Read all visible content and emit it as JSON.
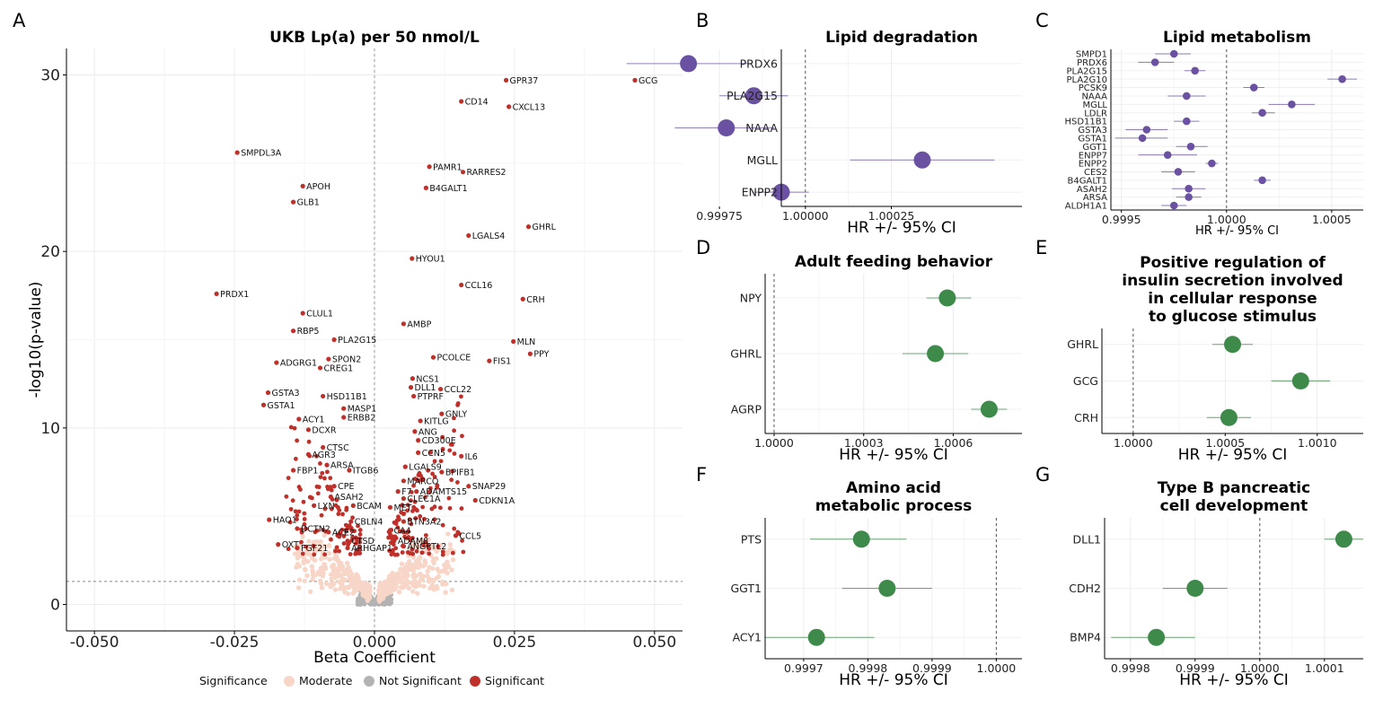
{
  "colors": {
    "significant": "#c0302a",
    "moderate": "#f7d6c8",
    "not_significant": "#b3b3b3",
    "purple": "#6b51a2",
    "green": "#3e8a4a",
    "grid": "#ececec"
  },
  "chart_data": [
    {
      "id": "A",
      "panel_letter": "A",
      "type": "scatter",
      "title": "UKB Lp(a) per 50 nmol/L",
      "xlabel": "Beta Coefficient",
      "ylabel": "-log10(p-value)",
      "xlim": [
        -0.055,
        0.055
      ],
      "ylim": [
        -1.5,
        31.5
      ],
      "x_ticks": [
        -0.05,
        -0.025,
        0,
        0.025,
        0.05
      ],
      "x_tick_labels": [
        "-0.050",
        "-0.025",
        "0.000",
        "0.025",
        "0.050"
      ],
      "y_ticks": [
        0,
        10,
        20,
        30
      ],
      "y_tick_labels": [
        "0",
        "10",
        "20",
        "30"
      ],
      "threshold_y": 1.3,
      "legend": {
        "title": "Significance",
        "entries": [
          {
            "label": "Moderate",
            "key": "moderate"
          },
          {
            "label": "Not Significant",
            "key": "not_significant"
          },
          {
            "label": "Significant",
            "key": "significant"
          }
        ],
        "position": "bottom"
      },
      "labeled_points": [
        {
          "label": "GCG",
          "x": 0.0465,
          "y": 29.7
        },
        {
          "label": "GPR37",
          "x": 0.0235,
          "y": 29.7
        },
        {
          "label": "CD14",
          "x": 0.0155,
          "y": 28.5
        },
        {
          "label": "CXCL13",
          "x": 0.024,
          "y": 28.2
        },
        {
          "label": "SMPDL3A",
          "x": -0.0245,
          "y": 25.6
        },
        {
          "label": "PAMR1",
          "x": 0.0098,
          "y": 24.8
        },
        {
          "label": "RARRES2",
          "x": 0.0158,
          "y": 24.5
        },
        {
          "label": "APOH",
          "x": -0.0128,
          "y": 23.7
        },
        {
          "label": "B4GALT1",
          "x": 0.0092,
          "y": 23.6
        },
        {
          "label": "GLB1",
          "x": -0.0145,
          "y": 22.8
        },
        {
          "label": "GHRL",
          "x": 0.0275,
          "y": 21.4
        },
        {
          "label": "LGALS4",
          "x": 0.0168,
          "y": 20.9
        },
        {
          "label": "HYOU1",
          "x": 0.0067,
          "y": 19.6
        },
        {
          "label": "CCL16",
          "x": 0.0155,
          "y": 18.1
        },
        {
          "label": "PRDX1",
          "x": -0.0282,
          "y": 17.6
        },
        {
          "label": "CRH",
          "x": 0.0265,
          "y": 17.3
        },
        {
          "label": "CLUL1",
          "x": -0.0128,
          "y": 16.5
        },
        {
          "label": "AMBP",
          "x": 0.0052,
          "y": 15.9
        },
        {
          "label": "RBP5",
          "x": -0.0145,
          "y": 15.5
        },
        {
          "label": "PLA2G15",
          "x": -0.0072,
          "y": 15.0
        },
        {
          "label": "MLN",
          "x": 0.0248,
          "y": 14.9
        },
        {
          "label": "PPY",
          "x": 0.0278,
          "y": 14.2
        },
        {
          "label": "PCOLCE",
          "x": 0.0105,
          "y": 14.0
        },
        {
          "label": "SPON2",
          "x": -0.0082,
          "y": 13.9
        },
        {
          "label": "FIS1",
          "x": 0.0205,
          "y": 13.8
        },
        {
          "label": "ADGRG1",
          "x": -0.0175,
          "y": 13.7
        },
        {
          "label": "CREG1",
          "x": -0.0097,
          "y": 13.4
        },
        {
          "label": "NCS1",
          "x": 0.0068,
          "y": 12.8
        },
        {
          "label": "DLL1",
          "x": 0.0065,
          "y": 12.3
        },
        {
          "label": "CCL22",
          "x": 0.0118,
          "y": 12.2
        },
        {
          "label": "GSTA3",
          "x": -0.019,
          "y": 12.0
        },
        {
          "label": "PTPRF",
          "x": 0.007,
          "y": 11.8
        },
        {
          "label": "HSD11B1",
          "x": -0.0092,
          "y": 11.8
        },
        {
          "label": "GSTA1",
          "x": -0.0198,
          "y": 11.3
        },
        {
          "label": "MASP1",
          "x": -0.0055,
          "y": 11.1
        },
        {
          "label": "GNLY",
          "x": 0.012,
          "y": 10.8
        },
        {
          "label": "ERBB2",
          "x": -0.0055,
          "y": 10.6
        },
        {
          "label": "ACY1",
          "x": -0.0135,
          "y": 10.5
        },
        {
          "label": "KITLG",
          "x": 0.0082,
          "y": 10.4
        },
        {
          "label": "DCXR",
          "x": -0.0118,
          "y": 9.9
        },
        {
          "label": "ANG",
          "x": 0.0072,
          "y": 9.8
        },
        {
          "label": "CD300E",
          "x": 0.0078,
          "y": 9.3
        },
        {
          "label": "CTSC",
          "x": -0.0092,
          "y": 8.9
        },
        {
          "label": "CCN5",
          "x": 0.0078,
          "y": 8.6
        },
        {
          "label": "AGR3",
          "x": -0.0118,
          "y": 8.5
        },
        {
          "label": "IL6",
          "x": 0.0155,
          "y": 8.4
        },
        {
          "label": "ARSA",
          "x": -0.0085,
          "y": 7.9
        },
        {
          "label": "LGALS9",
          "x": 0.0055,
          "y": 7.8
        },
        {
          "label": "FBP1",
          "x": -0.0145,
          "y": 7.6
        },
        {
          "label": "ITGB6",
          "x": -0.0045,
          "y": 7.6
        },
        {
          "label": "BPIFB1",
          "x": 0.012,
          "y": 7.5
        },
        {
          "label": "MARCO",
          "x": 0.0052,
          "y": 7.0
        },
        {
          "label": "SNAP29",
          "x": 0.0168,
          "y": 6.7
        },
        {
          "label": "CPE",
          "x": -0.0072,
          "y": 6.7
        },
        {
          "label": "F7",
          "x": 0.0042,
          "y": 6.4
        },
        {
          "label": "ADAMTS15",
          "x": 0.0075,
          "y": 6.4
        },
        {
          "label": "ASAH2",
          "x": -0.0078,
          "y": 6.1
        },
        {
          "label": "CLEC1A",
          "x": 0.0052,
          "y": 6.0
        },
        {
          "label": "CDKN1A",
          "x": 0.018,
          "y": 5.9
        },
        {
          "label": "LXN",
          "x": -0.0108,
          "y": 5.6
        },
        {
          "label": "BCAM",
          "x": -0.0038,
          "y": 5.6
        },
        {
          "label": "MET",
          "x": 0.0028,
          "y": 5.5
        },
        {
          "label": "HAO1",
          "x": -0.0188,
          "y": 4.8
        },
        {
          "label": "CBLN4",
          "x": -0.0042,
          "y": 4.7
        },
        {
          "label": "BTN3A2",
          "x": 0.0052,
          "y": 4.7
        },
        {
          "label": "DCTN2",
          "x": -0.0138,
          "y": 4.3
        },
        {
          "label": "ACE2",
          "x": -0.0082,
          "y": 4.1
        },
        {
          "label": "CA4",
          "x": 0.0028,
          "y": 4.2
        },
        {
          "label": "CCL5",
          "x": 0.0145,
          "y": 3.9
        },
        {
          "label": "CTSD",
          "x": -0.0048,
          "y": 3.6
        },
        {
          "label": "ADAM8",
          "x": 0.0035,
          "y": 3.6
        },
        {
          "label": "OXT",
          "x": -0.0172,
          "y": 3.4
        },
        {
          "label": "FGF21",
          "x": -0.0138,
          "y": 3.2
        },
        {
          "label": "ARHGAP1",
          "x": -0.0048,
          "y": 3.2
        },
        {
          "label": "ANGPTL2",
          "x": 0.0052,
          "y": 3.3
        }
      ],
      "unlabeled_note": "Additional unlabeled points (significant, moderate and not significant) form the volcano body."
    },
    {
      "id": "B",
      "panel_letter": "B",
      "type": "forest",
      "title": "Lipid degradation",
      "title_lines": [
        "Lipid degradation"
      ],
      "xlabel": "HR +/- 95% CI",
      "color": "purple",
      "marker_size": "large",
      "xlim": [
        0.99993,
        1.00063
      ],
      "x_ticks": [
        0.99975,
        1.0,
        1.00025
      ],
      "x_tick_labels": [
        "0.99975",
        "1.00000",
        "1.00025"
      ],
      "reference_line": 1.0,
      "rows": [
        {
          "label": "PRDX6",
          "hr": 0.99966,
          "lo": 0.99948,
          "hi": 0.99984
        },
        {
          "label": "PLA2G15",
          "hr": 0.99985,
          "lo": 0.99975,
          "hi": 0.99995
        },
        {
          "label": "NAAA",
          "hr": 0.99977,
          "lo": 0.99962,
          "hi": 0.99991
        },
        {
          "label": "MGLL",
          "hr": 1.00034,
          "lo": 1.00013,
          "hi": 1.00055
        },
        {
          "label": "ENPP2",
          "hr": 0.99993,
          "lo": 0.99985,
          "hi": 1.00001
        }
      ]
    },
    {
      "id": "C",
      "panel_letter": "C",
      "type": "forest",
      "title": "Lipid metabolism",
      "title_lines": [
        "Lipid metabolism"
      ],
      "xlabel": "HR +/- 95% CI",
      "color": "purple",
      "marker_size": "small",
      "xlim": [
        0.99945,
        1.00065
      ],
      "x_ticks": [
        0.9995,
        1.0,
        1.0005
      ],
      "x_tick_labels": [
        "0.9995",
        "1.0000",
        "1.0005"
      ],
      "reference_line": 1.0,
      "rows": [
        {
          "label": "SMPD1",
          "hr": 0.99975,
          "lo": 0.99966,
          "hi": 0.99983
        },
        {
          "label": "PRDX6",
          "hr": 0.99966,
          "lo": 0.99958,
          "hi": 0.99975
        },
        {
          "label": "PLA2G15",
          "hr": 0.99985,
          "lo": 0.9998,
          "hi": 0.9999
        },
        {
          "label": "PLA2G10",
          "hr": 1.00055,
          "lo": 1.00048,
          "hi": 1.00062
        },
        {
          "label": "PCSK9",
          "hr": 1.00013,
          "lo": 1.00008,
          "hi": 1.00018
        },
        {
          "label": "NAAA",
          "hr": 0.99981,
          "lo": 0.99972,
          "hi": 0.9999
        },
        {
          "label": "MGLL",
          "hr": 1.00031,
          "lo": 1.0002,
          "hi": 1.00042
        },
        {
          "label": "LDLR",
          "hr": 1.00017,
          "lo": 1.00012,
          "hi": 1.00023
        },
        {
          "label": "HSD11B1",
          "hr": 0.99981,
          "lo": 0.99975,
          "hi": 0.99987
        },
        {
          "label": "GSTA3",
          "hr": 0.99962,
          "lo": 0.99952,
          "hi": 0.99972
        },
        {
          "label": "GSTA1",
          "hr": 0.9996,
          "lo": 0.99947,
          "hi": 0.99972
        },
        {
          "label": "GGT1",
          "hr": 0.99983,
          "lo": 0.99976,
          "hi": 0.99991
        },
        {
          "label": "ENPP7",
          "hr": 0.99972,
          "lo": 0.99958,
          "hi": 0.99986
        },
        {
          "label": "ENPP2",
          "hr": 0.99993,
          "lo": 0.9999,
          "hi": 0.99996
        },
        {
          "label": "CES2",
          "hr": 0.99977,
          "lo": 0.99969,
          "hi": 0.99985
        },
        {
          "label": "B4GALT1",
          "hr": 1.00017,
          "lo": 1.00013,
          "hi": 1.00021
        },
        {
          "label": "ASAH2",
          "hr": 0.99982,
          "lo": 0.99974,
          "hi": 0.9999
        },
        {
          "label": "ARSA",
          "hr": 0.99982,
          "lo": 0.99976,
          "hi": 0.99988
        },
        {
          "label": "ALDH1A1",
          "hr": 0.99975,
          "lo": 0.99969,
          "hi": 0.99981
        }
      ]
    },
    {
      "id": "D",
      "panel_letter": "D",
      "type": "forest",
      "title": "Adult feeding behavior",
      "title_lines": [
        "Adult feeding behavior"
      ],
      "xlabel": "HR +/- 95% CI",
      "color": "green",
      "marker_size": "large",
      "xlim": [
        0.99997,
        1.00083
      ],
      "x_ticks": [
        1.0,
        1.0003,
        1.0006
      ],
      "x_tick_labels": [
        "1.0000",
        "1.0003",
        "1.0006"
      ],
      "reference_line": 1.0,
      "rows": [
        {
          "label": "NPY",
          "hr": 1.00058,
          "lo": 1.00051,
          "hi": 1.00066
        },
        {
          "label": "GHRL",
          "hr": 1.00054,
          "lo": 1.00043,
          "hi": 1.00065
        },
        {
          "label": "AGRP",
          "hr": 1.00072,
          "lo": 1.00066,
          "hi": 1.00078
        }
      ]
    },
    {
      "id": "E",
      "panel_letter": "E",
      "type": "forest",
      "title": "Positive regulation of insulin secretion involved in cellular response to glucose stimulus",
      "title_lines": [
        "Positive regulation of",
        "insulin secretion involved",
        "in cellular response",
        "to glucose stimulus"
      ],
      "xlabel": "HR +/- 95% CI",
      "color": "green",
      "marker_size": "large",
      "xlim": [
        0.99983,
        1.00125
      ],
      "x_ticks": [
        1.0,
        1.0005,
        1.001
      ],
      "x_tick_labels": [
        "1.0000",
        "1.0005",
        "1.0010"
      ],
      "reference_line": 1.0,
      "rows": [
        {
          "label": "GHRL",
          "hr": 1.00054,
          "lo": 1.00043,
          "hi": 1.00065
        },
        {
          "label": "GCG",
          "hr": 1.00091,
          "lo": 1.00075,
          "hi": 1.00107
        },
        {
          "label": "CRH",
          "hr": 1.00052,
          "lo": 1.0004,
          "hi": 1.00064
        }
      ]
    },
    {
      "id": "F",
      "panel_letter": "F",
      "type": "forest",
      "title": "Amino acid metabolic process",
      "title_lines": [
        "Amino acid",
        "metabolic process"
      ],
      "xlabel": "HR +/- 95% CI",
      "color": "green",
      "marker_size": "large",
      "xlim": [
        0.99964,
        1.00004
      ],
      "x_ticks": [
        0.9997,
        0.9998,
        0.9999,
        1.0
      ],
      "x_tick_labels": [
        "0.9997",
        "0.9998",
        "0.9999",
        "1.0000"
      ],
      "reference_line": 1.0,
      "rows": [
        {
          "label": "PTS",
          "hr": 0.99979,
          "lo": 0.99971,
          "hi": 0.99986
        },
        {
          "label": "GGT1",
          "hr": 0.99983,
          "lo": 0.99976,
          "hi": 0.9999
        },
        {
          "label": "ACY1",
          "hr": 0.99972,
          "lo": 0.99964,
          "hi": 0.99981
        }
      ]
    },
    {
      "id": "G",
      "panel_letter": "G",
      "type": "forest",
      "title": "Type B pancreatic cell development",
      "title_lines": [
        "Type B pancreatic",
        "cell development"
      ],
      "xlabel": "HR +/- 95% CI",
      "color": "green",
      "marker_size": "large",
      "xlim": [
        0.99976,
        1.00016
      ],
      "x_ticks": [
        0.9998,
        0.9999,
        1.0,
        1.0001
      ],
      "x_tick_labels": [
        "0.9998",
        "0.9999",
        "1.0000",
        "1.0001"
      ],
      "reference_line": 1.0,
      "rows": [
        {
          "label": "DLL1",
          "hr": 1.00013,
          "lo": 1.0001,
          "hi": 1.00016
        },
        {
          "label": "CDH2",
          "hr": 0.9999,
          "lo": 0.99985,
          "hi": 0.99995
        },
        {
          "label": "BMP4",
          "hr": 0.99984,
          "lo": 0.99977,
          "hi": 0.9999
        }
      ]
    }
  ]
}
